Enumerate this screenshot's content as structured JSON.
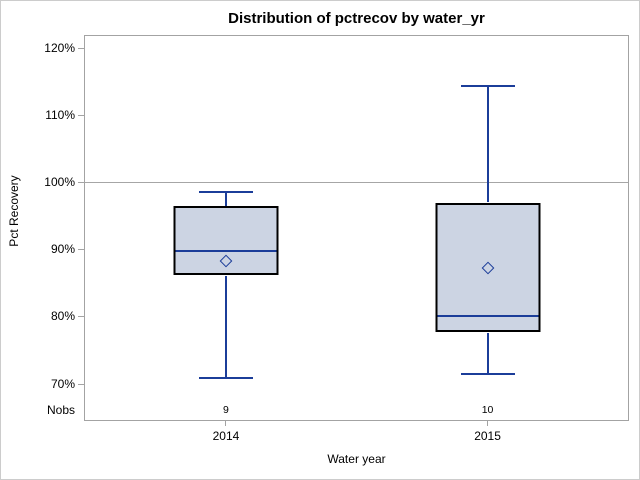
{
  "title": "Distribution of pctrecov by water_yr",
  "y_axis": {
    "label": "Pct Recovery",
    "tick_labels": [
      "120%",
      "110%",
      "100%",
      "90%",
      "80%",
      "70%"
    ]
  },
  "x_axis": {
    "label": "Water year",
    "tick_labels": [
      "2014",
      "2015"
    ]
  },
  "nobs_row": {
    "label": "Nobs",
    "values": [
      "9",
      "10"
    ]
  },
  "colors": {
    "box_fill": "#ccd4e3",
    "box_line_blue": "#1b3d99",
    "box_frame": "#000000",
    "axis_frame": "#a3a3a3",
    "reference_line": "#a6a6a6",
    "text": "#000000",
    "background": "#ffffff"
  },
  "chart_data": {
    "type": "box",
    "title": "Distribution of pctrecov by water_yr",
    "xlabel": "Water year",
    "ylabel": "Pct Recovery",
    "categories": [
      "2014",
      "2015"
    ],
    "y_ticks": [
      120,
      110,
      100,
      90,
      80,
      70
    ],
    "y_tick_format": "percent",
    "y_axis_range": [
      64.5,
      122
    ],
    "reference_line_y": 100,
    "grid": false,
    "legend": false,
    "series": [
      {
        "category": "2014",
        "nobs": 9,
        "min": 70.8,
        "q1": 86.0,
        "median": 89.7,
        "mean": 88.3,
        "q3": 96.4,
        "max": 98.6
      },
      {
        "category": "2015",
        "nobs": 10,
        "min": 71.4,
        "q1": 77.6,
        "median": 80.0,
        "mean": 87.2,
        "q3": 96.9,
        "max": 114.3
      }
    ]
  }
}
